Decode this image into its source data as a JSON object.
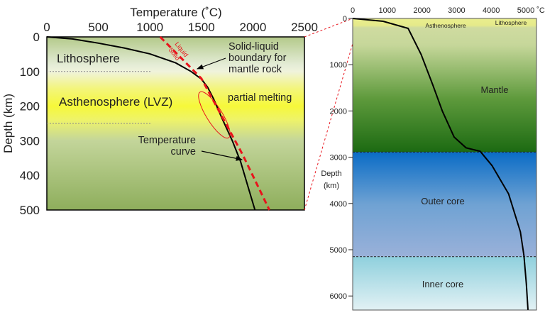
{
  "chart_data": [
    {
      "type": "line",
      "xlabel": "Temperature (˚C)",
      "ylabel": "Depth (km)",
      "xlim": [
        0,
        2500
      ],
      "ylim": [
        500,
        0
      ],
      "x_ticks": [
        "0",
        "500",
        "1000",
        "1500",
        "2000",
        "2500"
      ],
      "y_ticks": [
        "0",
        "100",
        "200",
        "300",
        "400",
        "500"
      ],
      "series": [
        {
          "name": "Temperature curve",
          "color": "#000000",
          "style": "solid",
          "points": [
            [
              0,
              0
            ],
            [
              250,
              6
            ],
            [
              500,
              18
            ],
            [
              750,
              32
            ],
            [
              1000,
              49
            ],
            [
              1250,
              75
            ],
            [
              1400,
              100
            ],
            [
              1500,
              122
            ],
            [
              1560,
              145
            ],
            [
              1620,
              180
            ],
            [
              1700,
              235
            ],
            [
              1800,
              300
            ],
            [
              1880,
              360
            ],
            [
              1950,
              430
            ],
            [
              2020,
              500
            ]
          ]
        },
        {
          "name": "Solid-liquid boundary for mantle rock",
          "color": "#e8141c",
          "style": "dashed",
          "points": [
            [
              1100,
              0
            ],
            [
              1300,
              60
            ],
            [
              1500,
              120
            ],
            [
              1700,
              230
            ],
            [
              1900,
              340
            ],
            [
              2030,
              420
            ],
            [
              2160,
              500
            ]
          ]
        }
      ],
      "regions": [
        {
          "label": "Lithosphere",
          "from": 0,
          "to": 100
        },
        {
          "label": "Asthenosphere (LVZ)",
          "from": 100,
          "to": 250
        }
      ],
      "annotations": {
        "liquid": "Liquid",
        "solid": "Solid",
        "boundary_lines": [
          "Solid-liquid",
          "boundary for",
          "mantle rock"
        ],
        "partial_melting": "partial melting",
        "temp_curve_lines": [
          "Temperature",
          "curve"
        ]
      }
    },
    {
      "type": "line",
      "xlabel": "˚C",
      "ylabel_lines": [
        "Depth",
        "(km)"
      ],
      "xlim": [
        0,
        5300
      ],
      "ylim": [
        6300,
        0
      ],
      "x_ticks": [
        "0",
        "1000",
        "2000",
        "3000",
        "4000",
        "5000"
      ],
      "y_ticks": [
        "0",
        "1000",
        "2000",
        "3000",
        "4000",
        "5000",
        "6000"
      ],
      "series": [
        {
          "name": "Temperature curve",
          "color": "#000000",
          "points": [
            [
              0,
              0
            ],
            [
              880,
              61
            ],
            [
              1600,
              215
            ],
            [
              1975,
              777
            ],
            [
              2316,
              1442
            ],
            [
              2590,
              2004
            ],
            [
              2930,
              2566
            ],
            [
              3272,
              2796
            ],
            [
              3682,
              2873
            ],
            [
              4023,
              3180
            ],
            [
              4502,
              3793
            ],
            [
              4842,
              4612
            ],
            [
              4945,
              5123
            ],
            [
              5014,
              5736
            ],
            [
              5061,
              6299
            ]
          ]
        }
      ],
      "regions": [
        {
          "label": "Lithosphere"
        },
        {
          "label": "Asthenosphere"
        },
        {
          "label": "Mantle",
          "to": 2890
        },
        {
          "label": "Outer core",
          "from": 2890,
          "to": 5150
        },
        {
          "label": "Inner core",
          "from": 5150
        }
      ]
    }
  ]
}
